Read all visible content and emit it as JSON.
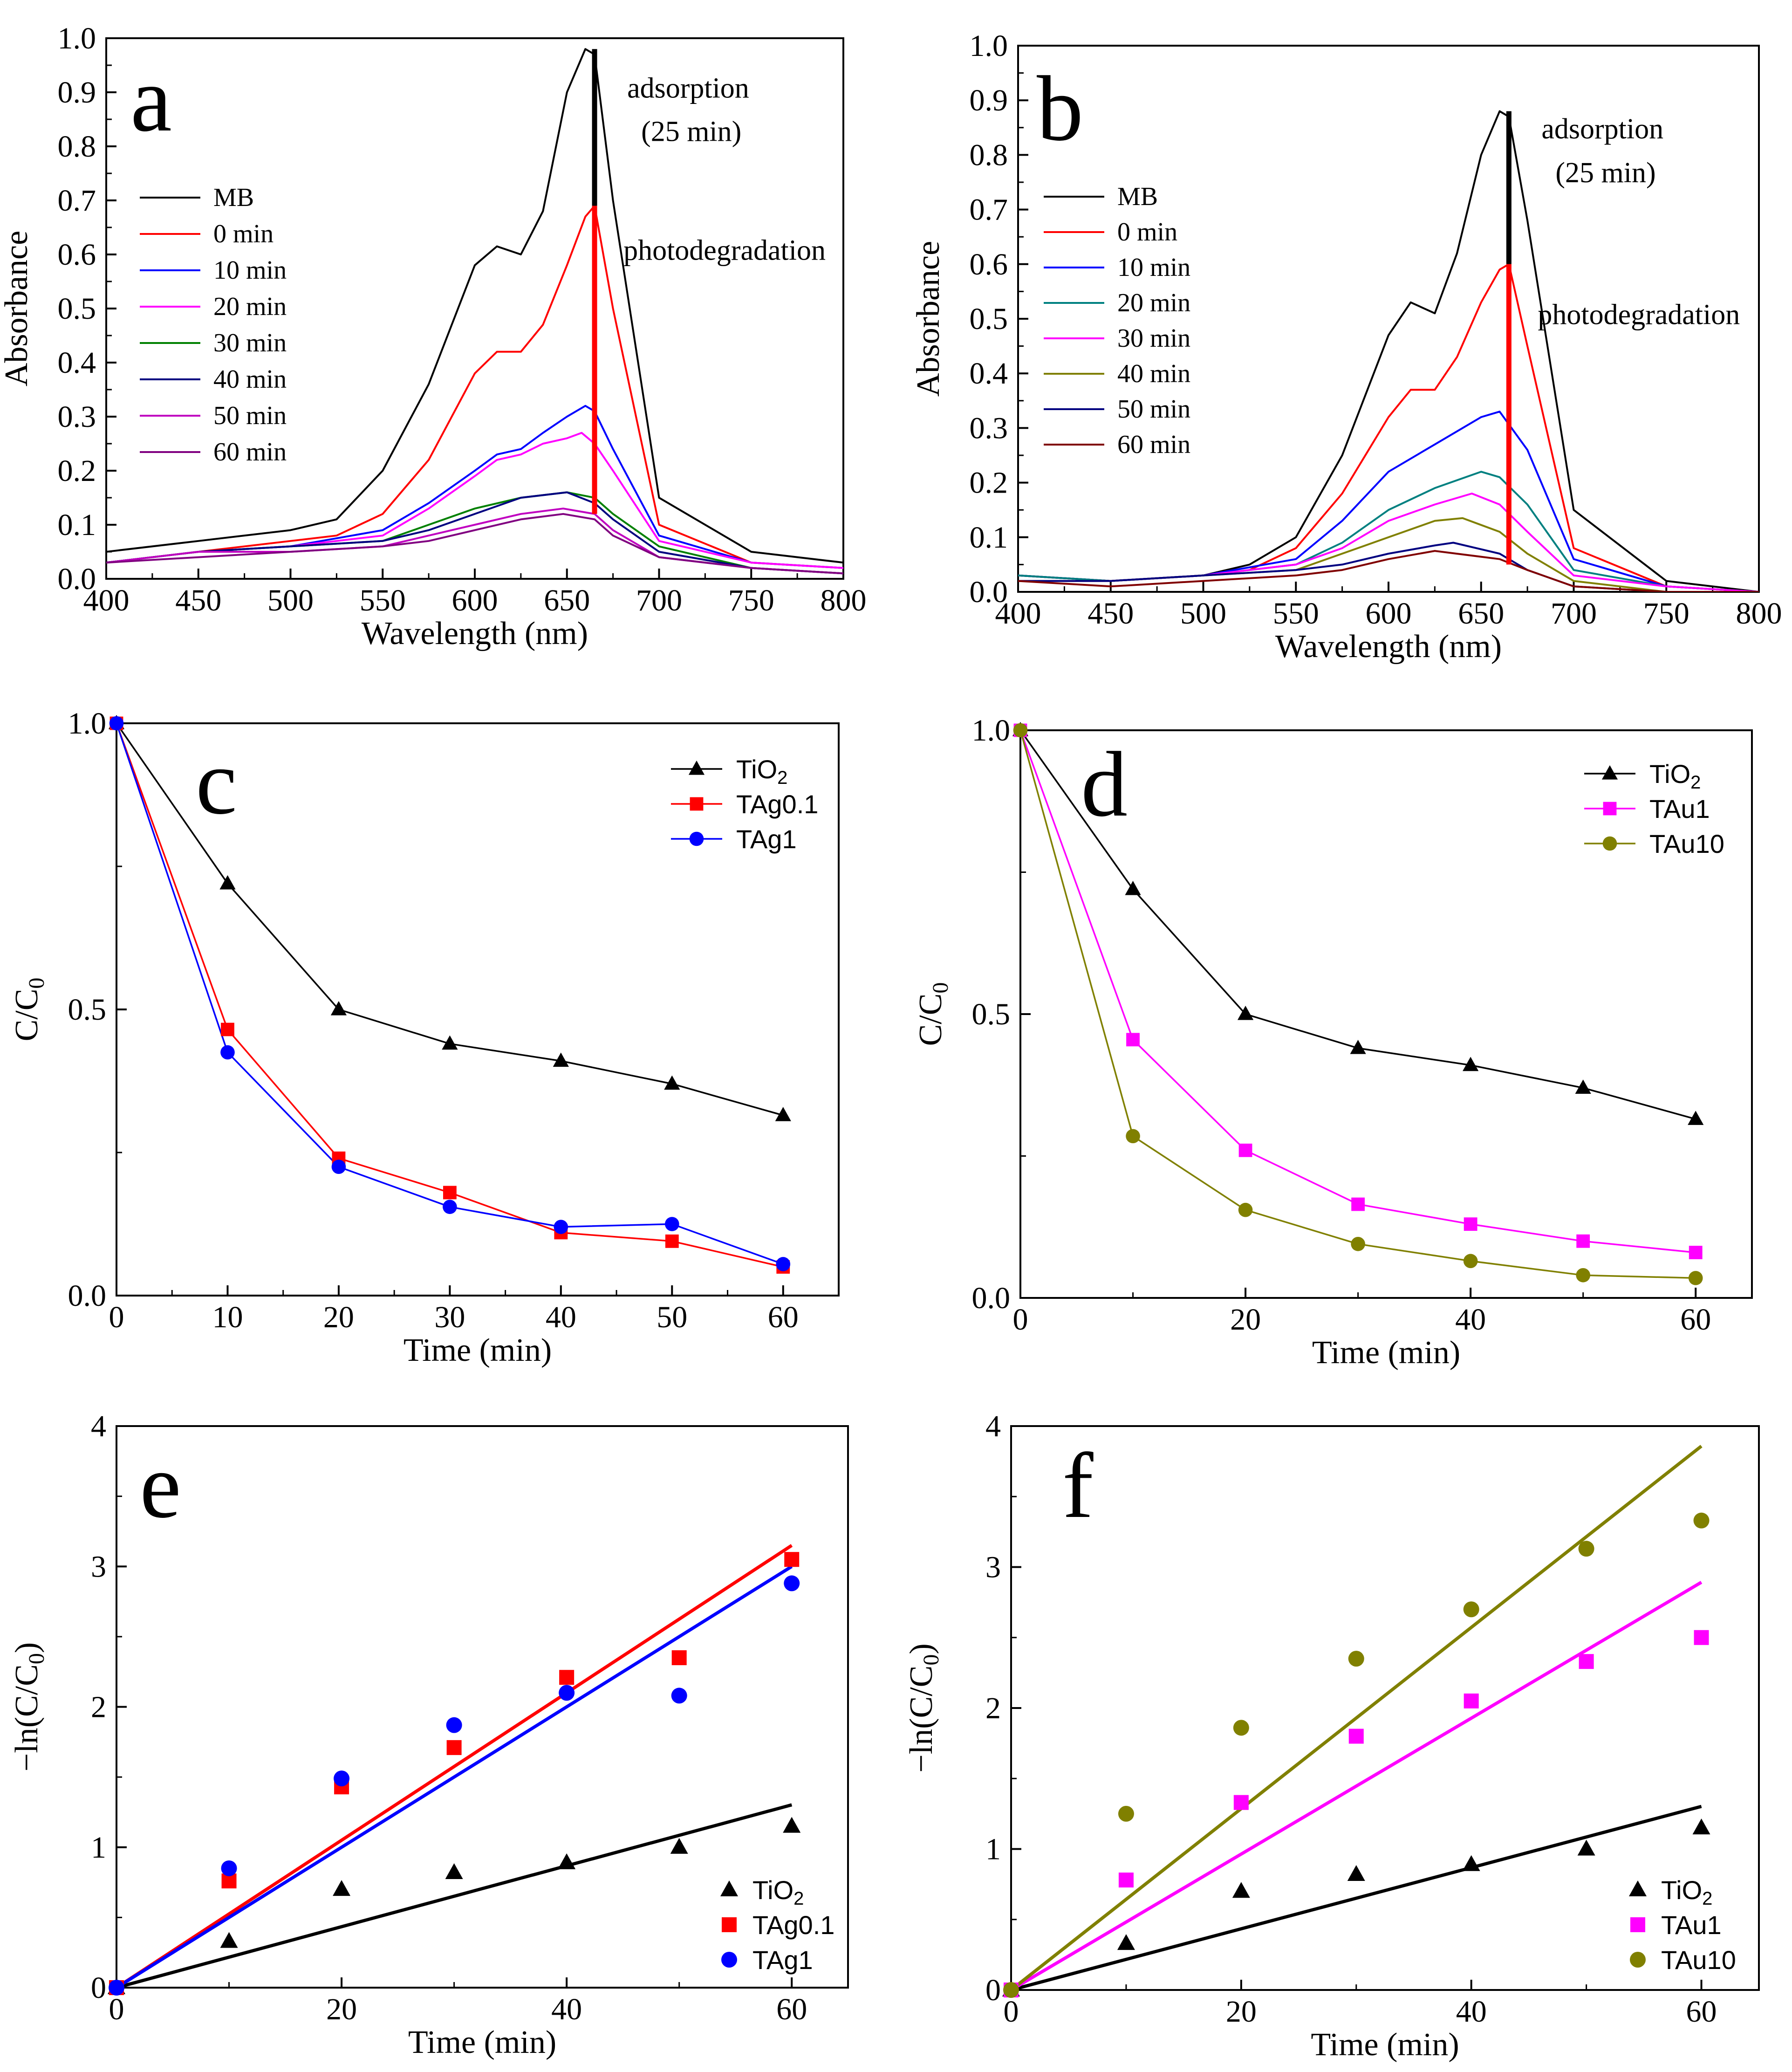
{
  "chart_data": [
    {
      "id": "a",
      "type": "line",
      "panel_label": "a",
      "xlabel": "Wavelength (nm)",
      "ylabel": "Absorbance",
      "xlim": [
        400,
        800
      ],
      "ylim": [
        0.0,
        1.0
      ],
      "xticks": [
        400,
        450,
        500,
        550,
        600,
        650,
        700,
        750,
        800
      ],
      "yticks": [
        0.0,
        0.1,
        0.2,
        0.3,
        0.4,
        0.5,
        0.6,
        0.7,
        0.8,
        0.9,
        1.0
      ],
      "annotations": [
        "adsorption",
        "(25 min)",
        "photodegradation"
      ],
      "legend_position": "left",
      "series": [
        {
          "name": "MB",
          "color": "#000000",
          "x": [
            400,
            450,
            500,
            525,
            550,
            575,
            600,
            612,
            625,
            637,
            650,
            660,
            665,
            675,
            700,
            750,
            800
          ],
          "y": [
            0.05,
            0.07,
            0.09,
            0.11,
            0.2,
            0.36,
            0.58,
            0.615,
            0.6,
            0.68,
            0.9,
            0.98,
            0.97,
            0.7,
            0.15,
            0.05,
            0.03
          ]
        },
        {
          "name": "0 min",
          "color": "#ff0000",
          "x": [
            400,
            450,
            500,
            525,
            550,
            575,
            600,
            612,
            625,
            637,
            650,
            660,
            665,
            675,
            700,
            750,
            800
          ],
          "y": [
            0.03,
            0.05,
            0.07,
            0.08,
            0.12,
            0.22,
            0.38,
            0.42,
            0.42,
            0.47,
            0.58,
            0.67,
            0.69,
            0.5,
            0.1,
            0.03,
            0.02
          ]
        },
        {
          "name": "10 min",
          "color": "#0000ff",
          "x": [
            400,
            450,
            500,
            550,
            575,
            600,
            612,
            625,
            637,
            650,
            660,
            665,
            675,
            700,
            750,
            800
          ],
          "y": [
            0.03,
            0.05,
            0.06,
            0.09,
            0.14,
            0.2,
            0.23,
            0.24,
            0.27,
            0.3,
            0.32,
            0.31,
            0.24,
            0.08,
            0.03,
            0.02
          ]
        },
        {
          "name": "20 min",
          "color": "#ff00ff",
          "x": [
            400,
            450,
            500,
            550,
            575,
            600,
            612,
            625,
            637,
            650,
            658,
            665,
            675,
            700,
            750,
            800
          ],
          "y": [
            0.03,
            0.05,
            0.06,
            0.08,
            0.13,
            0.19,
            0.22,
            0.23,
            0.25,
            0.26,
            0.27,
            0.25,
            0.2,
            0.07,
            0.03,
            0.02
          ]
        },
        {
          "name": "30 min",
          "color": "#008000",
          "x": [
            400,
            450,
            500,
            550,
            575,
            600,
            625,
            650,
            665,
            675,
            700,
            750,
            800
          ],
          "y": [
            0.03,
            0.05,
            0.06,
            0.07,
            0.1,
            0.13,
            0.15,
            0.16,
            0.15,
            0.12,
            0.06,
            0.02,
            0.01
          ]
        },
        {
          "name": "40 min",
          "color": "#000080",
          "x": [
            400,
            450,
            500,
            550,
            575,
            600,
            625,
            650,
            665,
            675,
            700,
            750,
            800
          ],
          "y": [
            0.03,
            0.05,
            0.06,
            0.07,
            0.09,
            0.12,
            0.15,
            0.16,
            0.14,
            0.11,
            0.05,
            0.02,
            0.01
          ]
        },
        {
          "name": "50 min",
          "color": "#c000c0",
          "x": [
            400,
            450,
            500,
            550,
            575,
            600,
            625,
            648,
            665,
            675,
            700,
            750,
            800
          ],
          "y": [
            0.03,
            0.05,
            0.05,
            0.06,
            0.08,
            0.1,
            0.12,
            0.13,
            0.12,
            0.09,
            0.04,
            0.02,
            0.01
          ]
        },
        {
          "name": "60 min",
          "color": "#800080",
          "x": [
            400,
            450,
            500,
            550,
            575,
            600,
            625,
            648,
            665,
            675,
            700,
            750,
            800
          ],
          "y": [
            0.03,
            0.04,
            0.05,
            0.06,
            0.07,
            0.09,
            0.11,
            0.12,
            0.11,
            0.08,
            0.04,
            0.02,
            0.01
          ]
        }
      ],
      "markers": [
        {
          "name": "adsorption",
          "color": "#000000",
          "x": 665,
          "y_from": 0.69,
          "y_to": 0.98
        },
        {
          "name": "photodegradation",
          "color": "#ff0000",
          "x": 665,
          "y_from": 0.12,
          "y_to": 0.69
        }
      ]
    },
    {
      "id": "b",
      "type": "line",
      "panel_label": "b",
      "xlabel": "Wavelength (nm)",
      "ylabel": "Absorbance",
      "xlim": [
        400,
        800
      ],
      "ylim": [
        0.0,
        1.0
      ],
      "xticks": [
        400,
        450,
        500,
        550,
        600,
        650,
        700,
        750,
        800
      ],
      "yticks": [
        0.0,
        0.1,
        0.2,
        0.3,
        0.4,
        0.5,
        0.6,
        0.7,
        0.8,
        0.9,
        1.0
      ],
      "annotations": [
        "adsorption",
        "(25 min)",
        "photodegradation"
      ],
      "legend_position": "left",
      "series": [
        {
          "name": "MB",
          "color": "#000000",
          "x": [
            400,
            450,
            500,
            525,
            550,
            575,
            600,
            612,
            625,
            637,
            650,
            660,
            665,
            675,
            700,
            750,
            800
          ],
          "y": [
            0.03,
            0.02,
            0.03,
            0.05,
            0.1,
            0.25,
            0.47,
            0.53,
            0.51,
            0.62,
            0.8,
            0.88,
            0.87,
            0.68,
            0.15,
            0.02,
            0.0
          ]
        },
        {
          "name": "0 min",
          "color": "#ff0000",
          "x": [
            400,
            450,
            500,
            525,
            550,
            575,
            600,
            612,
            625,
            637,
            650,
            660,
            665,
            675,
            700,
            750,
            800
          ],
          "y": [
            0.03,
            0.02,
            0.03,
            0.04,
            0.08,
            0.18,
            0.32,
            0.37,
            0.37,
            0.43,
            0.53,
            0.59,
            0.6,
            0.45,
            0.08,
            0.01,
            0.0
          ]
        },
        {
          "name": "10 min",
          "color": "#0000ff",
          "x": [
            400,
            450,
            500,
            550,
            575,
            600,
            625,
            650,
            660,
            675,
            700,
            750,
            800
          ],
          "y": [
            0.03,
            0.02,
            0.03,
            0.06,
            0.13,
            0.22,
            0.27,
            0.32,
            0.33,
            0.26,
            0.06,
            0.01,
            0.0
          ]
        },
        {
          "name": "20 min",
          "color": "#008080",
          "x": [
            400,
            450,
            500,
            550,
            575,
            600,
            625,
            650,
            660,
            675,
            700,
            750,
            800
          ],
          "y": [
            0.03,
            0.02,
            0.03,
            0.05,
            0.09,
            0.15,
            0.19,
            0.22,
            0.21,
            0.16,
            0.04,
            0.01,
            0.0
          ]
        },
        {
          "name": "30 min",
          "color": "#ff00ff",
          "x": [
            400,
            450,
            500,
            550,
            575,
            600,
            625,
            645,
            660,
            675,
            700,
            750,
            800
          ],
          "y": [
            0.02,
            0.02,
            0.03,
            0.05,
            0.08,
            0.13,
            0.16,
            0.18,
            0.16,
            0.11,
            0.03,
            0.01,
            0.0
          ]
        },
        {
          "name": "40 min",
          "color": "#808000",
          "x": [
            400,
            450,
            500,
            550,
            575,
            600,
            625,
            640,
            660,
            675,
            700,
            750,
            800
          ],
          "y": [
            0.02,
            0.02,
            0.03,
            0.04,
            0.07,
            0.1,
            0.13,
            0.135,
            0.11,
            0.07,
            0.02,
            0.0,
            0.0
          ]
        },
        {
          "name": "50 min",
          "color": "#000080",
          "x": [
            400,
            450,
            500,
            550,
            575,
            600,
            625,
            635,
            660,
            675,
            700,
            750,
            800
          ],
          "y": [
            0.02,
            0.02,
            0.03,
            0.04,
            0.05,
            0.07,
            0.085,
            0.09,
            0.07,
            0.04,
            0.01,
            0.0,
            0.0
          ]
        },
        {
          "name": "60 min",
          "color": "#800000",
          "x": [
            400,
            450,
            500,
            550,
            575,
            600,
            625,
            660,
            675,
            700,
            750,
            800
          ],
          "y": [
            0.02,
            0.01,
            0.02,
            0.03,
            0.04,
            0.06,
            0.075,
            0.06,
            0.04,
            0.01,
            0.0,
            0.0
          ]
        }
      ],
      "markers": [
        {
          "name": "adsorption",
          "color": "#000000",
          "x": 665,
          "y_from": 0.6,
          "y_to": 0.88
        },
        {
          "name": "photodegradation",
          "color": "#ff0000",
          "x": 665,
          "y_from": 0.05,
          "y_to": 0.6
        }
      ]
    },
    {
      "id": "c",
      "type": "line",
      "panel_label": "c",
      "xlabel": "Time (min)",
      "ylabel": "C/C0",
      "xlim": [
        0,
        65
      ],
      "ylim": [
        0,
        1
      ],
      "xticks": [
        0,
        10,
        20,
        30,
        40,
        50,
        60
      ],
      "yticks": [
        0.0,
        0.5,
        1.0
      ],
      "legend_position": "top-right",
      "series": [
        {
          "name": "TiO2",
          "color": "#000000",
          "marker": "triangle",
          "x": [
            0,
            10,
            20,
            30,
            40,
            50,
            60
          ],
          "y": [
            1.0,
            0.72,
            0.5,
            0.44,
            0.41,
            0.37,
            0.315
          ]
        },
        {
          "name": "TAg0.1",
          "color": "#ff0000",
          "marker": "square",
          "x": [
            0,
            10,
            20,
            30,
            40,
            50,
            60
          ],
          "y": [
            1.0,
            0.465,
            0.24,
            0.18,
            0.11,
            0.095,
            0.05
          ]
        },
        {
          "name": "TAg1",
          "color": "#0000ff",
          "marker": "circle",
          "x": [
            0,
            10,
            20,
            30,
            40,
            50,
            60
          ],
          "y": [
            1.0,
            0.425,
            0.225,
            0.155,
            0.12,
            0.125,
            0.055
          ]
        }
      ]
    },
    {
      "id": "d",
      "type": "line",
      "panel_label": "d",
      "xlabel": "Time (min)",
      "ylabel": "C/C0",
      "xlim": [
        0,
        65
      ],
      "ylim": [
        0,
        1
      ],
      "xticks": [
        0,
        20,
        40,
        60
      ],
      "yticks": [
        0.0,
        0.5,
        1.0
      ],
      "legend_position": "top-right",
      "series": [
        {
          "name": "TiO2",
          "color": "#000000",
          "marker": "triangle",
          "x": [
            0,
            10,
            20,
            30,
            40,
            50,
            60
          ],
          "y": [
            1.0,
            0.72,
            0.5,
            0.44,
            0.41,
            0.37,
            0.315
          ]
        },
        {
          "name": "TAu1",
          "color": "#ff00ff",
          "marker": "square",
          "x": [
            0,
            10,
            20,
            30,
            40,
            50,
            60
          ],
          "y": [
            1.0,
            0.455,
            0.26,
            0.165,
            0.13,
            0.1,
            0.08
          ]
        },
        {
          "name": "TAu10",
          "color": "#808000",
          "marker": "circle",
          "x": [
            0,
            10,
            20,
            30,
            40,
            50,
            60
          ],
          "y": [
            1.0,
            0.285,
            0.155,
            0.095,
            0.065,
            0.04,
            0.035
          ]
        }
      ]
    },
    {
      "id": "e",
      "type": "scatter",
      "panel_label": "e",
      "xlabel": "Time (min)",
      "ylabel": "-ln(C/C0)",
      "xlim": [
        0,
        65
      ],
      "ylim": [
        0,
        4
      ],
      "xticks": [
        0,
        20,
        40,
        60
      ],
      "yticks": [
        0,
        1,
        2,
        3,
        4
      ],
      "legend_position": "bottom-right",
      "series": [
        {
          "name": "TiO2",
          "color": "#000000",
          "marker": "triangle",
          "x": [
            0,
            10,
            20,
            30,
            40,
            50,
            60
          ],
          "y": [
            0,
            0.33,
            0.7,
            0.82,
            0.89,
            1.0,
            1.15
          ],
          "fit": {
            "slope": 0.0217,
            "intercept": 0
          }
        },
        {
          "name": "TAg0.1",
          "color": "#ff0000",
          "marker": "square",
          "x": [
            0,
            10,
            20,
            30,
            40,
            50,
            60
          ],
          "y": [
            0,
            0.76,
            1.43,
            1.71,
            2.21,
            2.35,
            3.05
          ],
          "fit": {
            "slope": 0.0525,
            "intercept": 0
          }
        },
        {
          "name": "TAg1",
          "color": "#0000ff",
          "marker": "circle",
          "x": [
            0,
            10,
            20,
            30,
            40,
            50,
            60
          ],
          "y": [
            0,
            0.85,
            1.49,
            1.87,
            2.1,
            2.08,
            2.88
          ],
          "fit": {
            "slope": 0.05,
            "intercept": 0
          }
        }
      ]
    },
    {
      "id": "f",
      "type": "scatter",
      "panel_label": "f",
      "xlabel": "Time (min)",
      "ylabel": "-ln(C/C0)",
      "xlim": [
        0,
        65
      ],
      "ylim": [
        0,
        4
      ],
      "xticks": [
        0,
        20,
        40,
        60
      ],
      "yticks": [
        0,
        1,
        2,
        3,
        4
      ],
      "legend_position": "bottom-right",
      "series": [
        {
          "name": "TiO2",
          "color": "#000000",
          "marker": "triangle",
          "x": [
            0,
            10,
            20,
            30,
            40,
            50,
            60
          ],
          "y": [
            0,
            0.33,
            0.7,
            0.82,
            0.89,
            1.0,
            1.15
          ],
          "fit": {
            "slope": 0.0217,
            "intercept": 0
          }
        },
        {
          "name": "TAu1",
          "color": "#ff00ff",
          "marker": "square",
          "x": [
            0,
            10,
            20,
            30,
            40,
            50,
            60
          ],
          "y": [
            0,
            0.78,
            1.33,
            1.8,
            2.05,
            2.33,
            2.5
          ],
          "fit": {
            "slope": 0.0482,
            "intercept": 0
          }
        },
        {
          "name": "TAu10",
          "color": "#808000",
          "marker": "circle",
          "x": [
            0,
            10,
            20,
            30,
            40,
            50,
            60
          ],
          "y": [
            0,
            1.25,
            1.86,
            2.35,
            2.7,
            3.13,
            3.33
          ],
          "fit": {
            "slope": 0.0643,
            "intercept": 0
          }
        }
      ]
    }
  ]
}
